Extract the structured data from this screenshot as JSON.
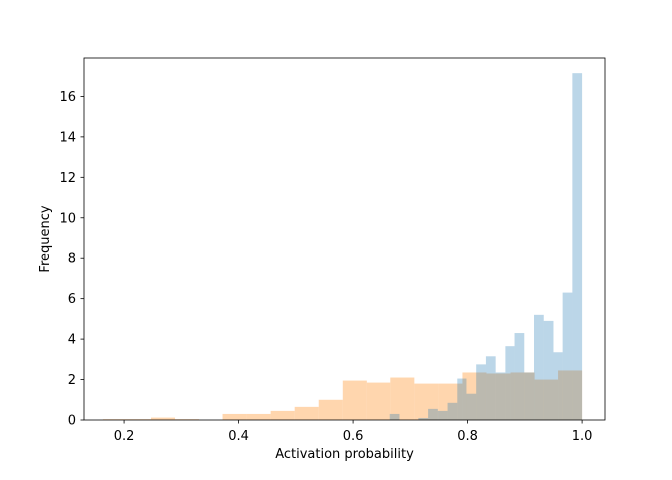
{
  "chart_data": {
    "type": "histogram",
    "title": "",
    "xlabel": "Activation probability",
    "ylabel": "Frequency",
    "xlim": [
      0.13,
      1.04
    ],
    "ylim": [
      0,
      17.9
    ],
    "grid": false,
    "legend": "none",
    "xticks": [
      {
        "value": 0.2,
        "label": "0.2"
      },
      {
        "value": 0.4,
        "label": "0.4"
      },
      {
        "value": 0.6,
        "label": "0.6"
      },
      {
        "value": 0.8,
        "label": "0.8"
      },
      {
        "value": 1.0,
        "label": "1.0"
      }
    ],
    "yticks": [
      {
        "value": 0,
        "label": "0"
      },
      {
        "value": 2,
        "label": "2"
      },
      {
        "value": 4,
        "label": "4"
      },
      {
        "value": 6,
        "label": "6"
      },
      {
        "value": 8,
        "label": "8"
      },
      {
        "value": 10,
        "label": "10"
      },
      {
        "value": 12,
        "label": "12"
      },
      {
        "value": 14,
        "label": "14"
      },
      {
        "value": 16,
        "label": "16"
      }
    ],
    "series": [
      {
        "color": "#ffbb78",
        "opacity": 0.6,
        "bins": [
          {
            "x0": 0.163,
            "x1": 0.205,
            "value": 0.04
          },
          {
            "x0": 0.205,
            "x1": 0.247,
            "value": 0.04
          },
          {
            "x0": 0.247,
            "x1": 0.289,
            "value": 0.12
          },
          {
            "x0": 0.289,
            "x1": 0.331,
            "value": 0.04
          },
          {
            "x0": 0.331,
            "x1": 0.372,
            "value": 0.0
          },
          {
            "x0": 0.372,
            "x1": 0.414,
            "value": 0.3
          },
          {
            "x0": 0.414,
            "x1": 0.456,
            "value": 0.3
          },
          {
            "x0": 0.456,
            "x1": 0.498,
            "value": 0.45
          },
          {
            "x0": 0.498,
            "x1": 0.54,
            "value": 0.65
          },
          {
            "x0": 0.54,
            "x1": 0.582,
            "value": 1.0
          },
          {
            "x0": 0.582,
            "x1": 0.624,
            "value": 1.95
          },
          {
            "x0": 0.624,
            "x1": 0.665,
            "value": 1.85
          },
          {
            "x0": 0.665,
            "x1": 0.707,
            "value": 2.1
          },
          {
            "x0": 0.707,
            "x1": 0.749,
            "value": 1.8
          },
          {
            "x0": 0.749,
            "x1": 0.791,
            "value": 1.8
          },
          {
            "x0": 0.791,
            "x1": 0.833,
            "value": 2.35
          },
          {
            "x0": 0.833,
            "x1": 0.875,
            "value": 2.3
          },
          {
            "x0": 0.875,
            "x1": 0.917,
            "value": 2.35
          },
          {
            "x0": 0.917,
            "x1": 0.958,
            "value": 2.0
          },
          {
            "x0": 0.958,
            "x1": 1.0,
            "value": 2.45
          }
        ]
      },
      {
        "color": "#1f77b4",
        "opacity": 0.3,
        "bins": [
          {
            "x0": 0.664,
            "x1": 0.681,
            "value": 0.3
          },
          {
            "x0": 0.681,
            "x1": 0.698,
            "value": 0.0
          },
          {
            "x0": 0.698,
            "x1": 0.714,
            "value": 0.0
          },
          {
            "x0": 0.714,
            "x1": 0.731,
            "value": 0.1
          },
          {
            "x0": 0.731,
            "x1": 0.748,
            "value": 0.55
          },
          {
            "x0": 0.748,
            "x1": 0.765,
            "value": 0.45
          },
          {
            "x0": 0.765,
            "x1": 0.782,
            "value": 0.85
          },
          {
            "x0": 0.782,
            "x1": 0.798,
            "value": 2.05
          },
          {
            "x0": 0.798,
            "x1": 0.815,
            "value": 1.3
          },
          {
            "x0": 0.815,
            "x1": 0.832,
            "value": 2.75
          },
          {
            "x0": 0.832,
            "x1": 0.849,
            "value": 3.15
          },
          {
            "x0": 0.849,
            "x1": 0.866,
            "value": 2.35
          },
          {
            "x0": 0.866,
            "x1": 0.882,
            "value": 3.65
          },
          {
            "x0": 0.882,
            "x1": 0.899,
            "value": 4.3
          },
          {
            "x0": 0.899,
            "x1": 0.916,
            "value": 2.35
          },
          {
            "x0": 0.916,
            "x1": 0.933,
            "value": 5.2
          },
          {
            "x0": 0.933,
            "x1": 0.95,
            "value": 4.9
          },
          {
            "x0": 0.95,
            "x1": 0.966,
            "value": 3.35
          },
          {
            "x0": 0.966,
            "x1": 0.983,
            "value": 6.3
          },
          {
            "x0": 0.983,
            "x1": 1.0,
            "value": 17.15
          }
        ]
      }
    ]
  }
}
